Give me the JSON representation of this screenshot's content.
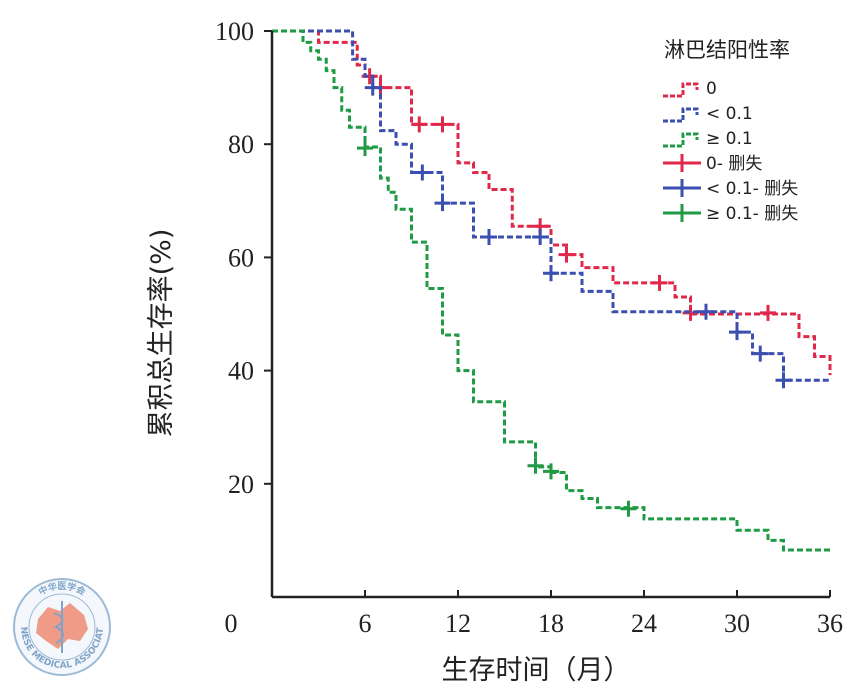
{
  "chart_data": {
    "type": "line",
    "step": true,
    "xlabel": "生存时间（月）",
    "ylabel": "累积总生存率(%)",
    "xlim": [
      0,
      36
    ],
    "ylim": [
      0,
      100
    ],
    "x_origin_label": "0",
    "x_ticks": [
      6,
      12,
      18,
      24,
      30,
      36
    ],
    "x_tick_labels": [
      "6",
      "12",
      "18",
      "24",
      "30",
      "36"
    ],
    "y_ticks": [
      20,
      40,
      60,
      80,
      100
    ],
    "y_tick_labels": [
      "20",
      "40",
      "60",
      "80",
      "100"
    ],
    "legend_title": "淋巴结阳性率",
    "legend_position": "top-right",
    "legend": [
      "0",
      "< 0.1",
      "≥ 0.1",
      "0- 删失",
      "< 0.1- 删失",
      "≥ 0.1- 删失"
    ],
    "colors": {
      "red": "#e0284a",
      "blue": "#3b4fb0",
      "green": "#1f9a45"
    },
    "series": [
      {
        "name": "0",
        "color_key": "red",
        "steps": [
          [
            0,
            100
          ],
          [
            3,
            98
          ],
          [
            5.5,
            94
          ],
          [
            6,
            92
          ],
          [
            7,
            90
          ],
          [
            9,
            83.5
          ],
          [
            12,
            76.7
          ],
          [
            13,
            75
          ],
          [
            14,
            72
          ],
          [
            15.5,
            65.5
          ],
          [
            18,
            62.2
          ],
          [
            19,
            60.5
          ],
          [
            20,
            58.2
          ],
          [
            22,
            55.5
          ],
          [
            26,
            53
          ],
          [
            27,
            50
          ],
          [
            34,
            46
          ],
          [
            35,
            42.5
          ],
          [
            36,
            39.2
          ]
        ],
        "censored": [
          [
            6.3,
            92
          ],
          [
            7,
            90
          ],
          [
            9.5,
            83.5
          ],
          [
            11,
            83.5
          ],
          [
            17.3,
            65.5
          ],
          [
            19,
            60.5
          ],
          [
            25,
            55.5
          ],
          [
            27,
            50.2
          ],
          [
            32,
            50.2
          ]
        ]
      },
      {
        "name": "< 0.1",
        "color_key": "blue",
        "steps": [
          [
            0,
            100
          ],
          [
            5.2,
            95
          ],
          [
            6,
            92
          ],
          [
            6.5,
            90
          ],
          [
            7,
            82.4
          ],
          [
            8,
            80
          ],
          [
            9,
            75
          ],
          [
            11,
            69.6
          ],
          [
            13,
            63.6
          ],
          [
            18,
            57.2
          ],
          [
            20,
            54
          ],
          [
            22,
            50.4
          ],
          [
            30,
            46.8
          ],
          [
            31,
            43
          ],
          [
            33,
            38.3
          ],
          [
            36,
            38.3
          ]
        ],
        "censored": [
          [
            6.5,
            90
          ],
          [
            9.7,
            75
          ],
          [
            11,
            69.6
          ],
          [
            14,
            63.6
          ],
          [
            17.3,
            63.6
          ],
          [
            18,
            57.2
          ],
          [
            28,
            50.4
          ],
          [
            30,
            46.8
          ],
          [
            31.5,
            43
          ],
          [
            33,
            38.3
          ]
        ]
      },
      {
        "name": "≥ 0.1",
        "color_key": "green",
        "steps": [
          [
            0,
            100
          ],
          [
            2,
            98
          ],
          [
            2.5,
            96.5
          ],
          [
            3,
            95
          ],
          [
            3.5,
            93
          ],
          [
            4,
            90
          ],
          [
            4.5,
            86
          ],
          [
            5,
            83
          ],
          [
            6,
            79.5
          ],
          [
            7,
            74
          ],
          [
            7.5,
            71.5
          ],
          [
            8,
            68.5
          ],
          [
            9,
            62.7
          ],
          [
            10,
            54.5
          ],
          [
            11,
            46.3
          ],
          [
            12,
            40
          ],
          [
            13,
            34.5
          ],
          [
            15,
            27.4
          ],
          [
            17,
            23
          ],
          [
            18,
            22
          ],
          [
            19,
            18.8
          ],
          [
            20,
            17.4
          ],
          [
            21,
            15.8
          ],
          [
            24,
            13.8
          ],
          [
            30,
            11.8
          ],
          [
            32,
            10
          ],
          [
            33,
            8.3
          ],
          [
            36,
            8.3
          ]
        ],
        "censored": [
          [
            6,
            79.3
          ],
          [
            17,
            23.2
          ],
          [
            18,
            22.2
          ],
          [
            23,
            15.6
          ]
        ]
      }
    ]
  },
  "watermark": {
    "top_text": "中华医学会",
    "bottom_text": "CHINESE MEDICAL ASSOCIATION"
  }
}
